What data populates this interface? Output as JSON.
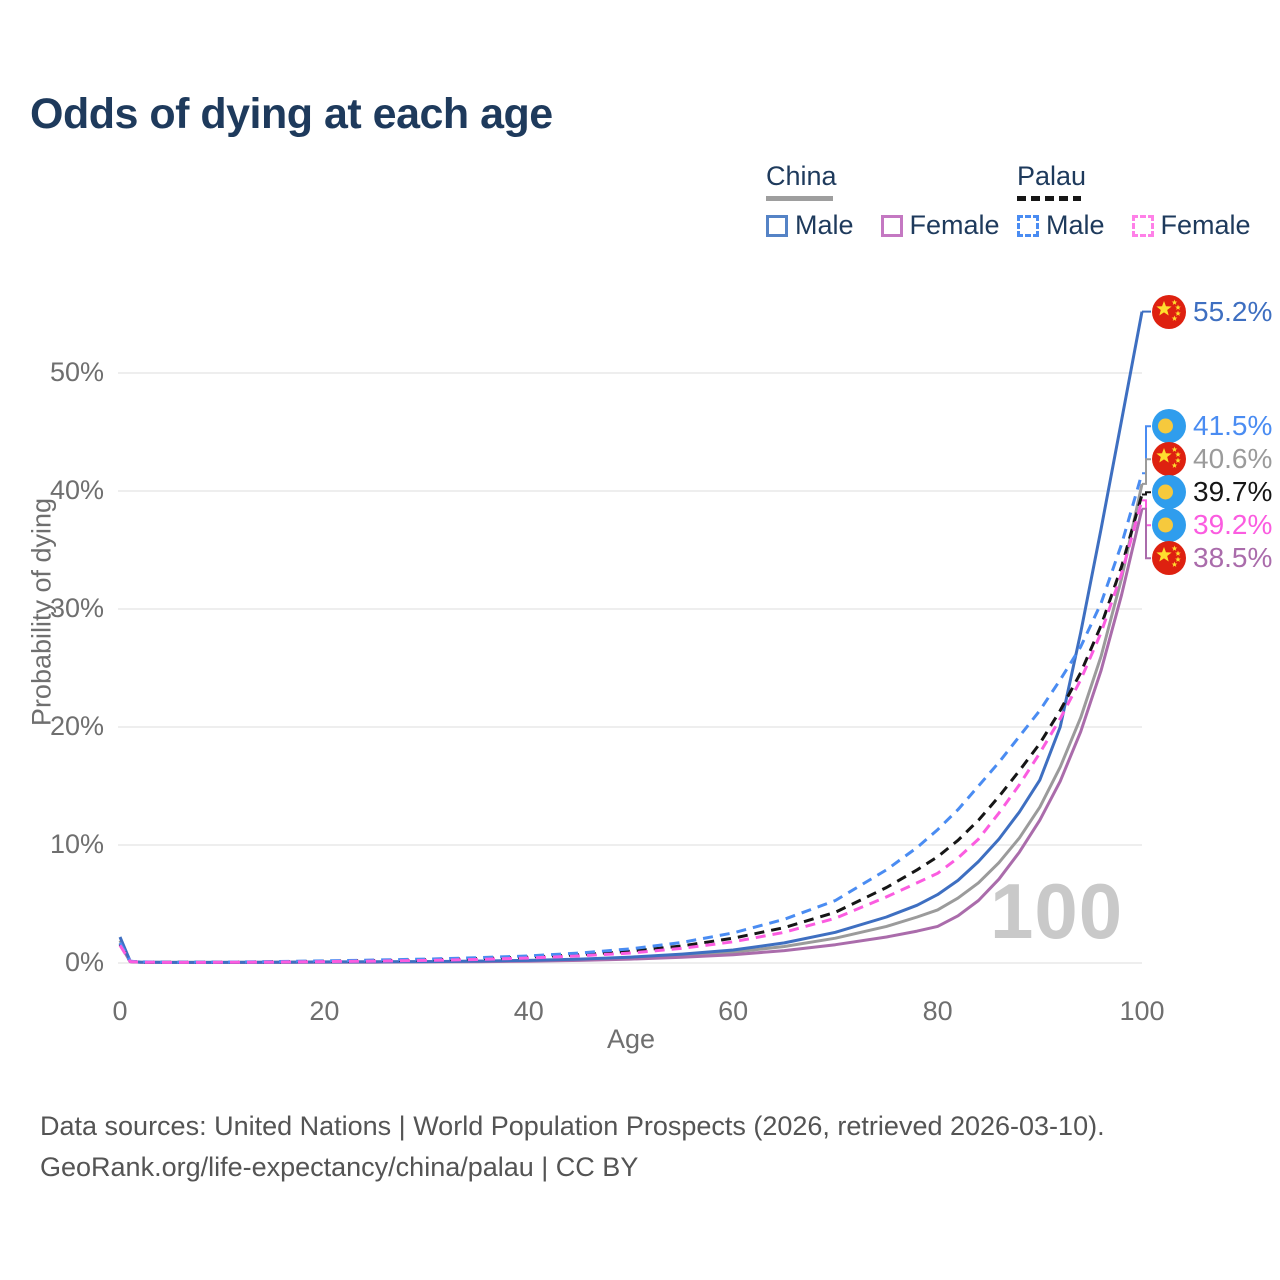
{
  "title": "Odds of dying at each age",
  "legend": {
    "groups": [
      {
        "name": "China",
        "line_style": "solid",
        "underline_color": "#9e9e9e",
        "items": [
          {
            "label": "Male",
            "color": "#3e6fc1"
          },
          {
            "label": "Female",
            "color": "#aa6cab"
          }
        ]
      },
      {
        "name": "Palau",
        "line_style": "dashed",
        "underline_color": "#161616",
        "items": [
          {
            "label": "Male",
            "color": "#4a8cf2"
          },
          {
            "label": "Female",
            "color": "#fb5ce0"
          }
        ]
      }
    ]
  },
  "chart_data": {
    "type": "line",
    "title": "Odds of dying at each age",
    "xlabel": "Age",
    "ylabel": "Probability of dying",
    "xlim": [
      0,
      100
    ],
    "ylim": [
      0,
      57
    ],
    "xticks": [
      0,
      20,
      40,
      60,
      80,
      100
    ],
    "yticks": [
      0,
      10,
      20,
      30,
      40,
      50
    ],
    "ytick_suffix": "%",
    "grid": "horizontal-only",
    "legend_position": "top-right",
    "watermark": "100",
    "series": [
      {
        "id": "china-total",
        "name": "China (both sexes)",
        "country": "China",
        "sex": "Total",
        "color": "#9b9b9b",
        "dash": false,
        "flag": "china",
        "end_label": "40.6%",
        "points": [
          [
            0,
            1.9
          ],
          [
            1,
            0.13
          ],
          [
            2,
            0.07
          ],
          [
            5,
            0.05
          ],
          [
            10,
            0.05
          ],
          [
            15,
            0.06
          ],
          [
            20,
            0.08
          ],
          [
            25,
            0.09
          ],
          [
            30,
            0.11
          ],
          [
            35,
            0.14
          ],
          [
            40,
            0.19
          ],
          [
            45,
            0.28
          ],
          [
            50,
            0.42
          ],
          [
            55,
            0.62
          ],
          [
            60,
            0.92
          ],
          [
            65,
            1.4
          ],
          [
            70,
            2.1
          ],
          [
            75,
            3.1
          ],
          [
            78,
            3.9
          ],
          [
            80,
            4.5
          ],
          [
            82,
            5.5
          ],
          [
            84,
            6.8
          ],
          [
            86,
            8.5
          ],
          [
            88,
            10.6
          ],
          [
            90,
            13.2
          ],
          [
            92,
            16.6
          ],
          [
            94,
            20.8
          ],
          [
            96,
            26.0
          ],
          [
            98,
            32.6
          ],
          [
            100,
            40.6
          ]
        ]
      },
      {
        "id": "china-female",
        "name": "China Female",
        "country": "China",
        "sex": "Female",
        "color": "#aa6cab",
        "dash": false,
        "flag": "china",
        "end_label": "38.5%",
        "points": [
          [
            0,
            1.6
          ],
          [
            1,
            0.11
          ],
          [
            2,
            0.06
          ],
          [
            5,
            0.04
          ],
          [
            10,
            0.04
          ],
          [
            15,
            0.05
          ],
          [
            20,
            0.06
          ],
          [
            25,
            0.07
          ],
          [
            30,
            0.09
          ],
          [
            35,
            0.11
          ],
          [
            40,
            0.15
          ],
          [
            45,
            0.22
          ],
          [
            50,
            0.33
          ],
          [
            55,
            0.48
          ],
          [
            60,
            0.7
          ],
          [
            65,
            1.05
          ],
          [
            70,
            1.55
          ],
          [
            75,
            2.2
          ],
          [
            78,
            2.7
          ],
          [
            80,
            3.1
          ],
          [
            82,
            4.0
          ],
          [
            84,
            5.3
          ],
          [
            86,
            7.1
          ],
          [
            88,
            9.4
          ],
          [
            90,
            12.1
          ],
          [
            92,
            15.4
          ],
          [
            94,
            19.6
          ],
          [
            96,
            24.8
          ],
          [
            98,
            31.2
          ],
          [
            100,
            38.5
          ]
        ]
      },
      {
        "id": "china-male",
        "name": "China Male",
        "country": "China",
        "sex": "Male",
        "color": "#3e6fc1",
        "dash": false,
        "flag": "china",
        "end_label": "55.2%",
        "points": [
          [
            0,
            2.2
          ],
          [
            1,
            0.15
          ],
          [
            2,
            0.08
          ],
          [
            5,
            0.05
          ],
          [
            10,
            0.05
          ],
          [
            15,
            0.07
          ],
          [
            20,
            0.09
          ],
          [
            25,
            0.1
          ],
          [
            30,
            0.12
          ],
          [
            35,
            0.16
          ],
          [
            40,
            0.22
          ],
          [
            45,
            0.33
          ],
          [
            50,
            0.5
          ],
          [
            55,
            0.75
          ],
          [
            60,
            1.1
          ],
          [
            65,
            1.7
          ],
          [
            70,
            2.6
          ],
          [
            75,
            3.9
          ],
          [
            78,
            4.9
          ],
          [
            80,
            5.8
          ],
          [
            82,
            7.0
          ],
          [
            84,
            8.6
          ],
          [
            86,
            10.5
          ],
          [
            88,
            12.8
          ],
          [
            90,
            15.5
          ],
          [
            92,
            20.0
          ],
          [
            94,
            28.0
          ],
          [
            96,
            36.8
          ],
          [
            98,
            46.0
          ],
          [
            100,
            55.2
          ]
        ]
      },
      {
        "id": "palau-total",
        "name": "Palau (both sexes)",
        "country": "Palau",
        "sex": "Total",
        "color": "#161616",
        "dash": true,
        "flag": "palau",
        "end_label": "39.7%",
        "points": [
          [
            0,
            1.6
          ],
          [
            1,
            0.13
          ],
          [
            2,
            0.08
          ],
          [
            5,
            0.06
          ],
          [
            10,
            0.07
          ],
          [
            15,
            0.1
          ],
          [
            20,
            0.15
          ],
          [
            25,
            0.2
          ],
          [
            30,
            0.27
          ],
          [
            35,
            0.37
          ],
          [
            40,
            0.5
          ],
          [
            45,
            0.7
          ],
          [
            50,
            1.0
          ],
          [
            55,
            1.45
          ],
          [
            60,
            2.1
          ],
          [
            65,
            3.0
          ],
          [
            70,
            4.3
          ],
          [
            75,
            6.4
          ],
          [
            78,
            7.9
          ],
          [
            80,
            9.0
          ],
          [
            82,
            10.4
          ],
          [
            84,
            12.1
          ],
          [
            86,
            14.1
          ],
          [
            88,
            16.3
          ],
          [
            90,
            18.6
          ],
          [
            92,
            21.4
          ],
          [
            94,
            24.6
          ],
          [
            96,
            28.6
          ],
          [
            98,
            33.6
          ],
          [
            100,
            39.7
          ]
        ]
      },
      {
        "id": "palau-male",
        "name": "Palau Male",
        "country": "Palau",
        "sex": "Male",
        "color": "#4a8cf2",
        "dash": true,
        "flag": "palau",
        "end_label": "41.5%",
        "points": [
          [
            0,
            1.7
          ],
          [
            1,
            0.14
          ],
          [
            2,
            0.09
          ],
          [
            5,
            0.07
          ],
          [
            10,
            0.08
          ],
          [
            15,
            0.12
          ],
          [
            20,
            0.18
          ],
          [
            25,
            0.25
          ],
          [
            30,
            0.33
          ],
          [
            35,
            0.45
          ],
          [
            40,
            0.6
          ],
          [
            45,
            0.85
          ],
          [
            50,
            1.2
          ],
          [
            55,
            1.75
          ],
          [
            60,
            2.55
          ],
          [
            65,
            3.7
          ],
          [
            70,
            5.3
          ],
          [
            75,
            7.9
          ],
          [
            78,
            9.8
          ],
          [
            80,
            11.3
          ],
          [
            82,
            13.0
          ],
          [
            84,
            15.0
          ],
          [
            86,
            17.0
          ],
          [
            88,
            19.2
          ],
          [
            90,
            21.4
          ],
          [
            92,
            24.0
          ],
          [
            94,
            26.8
          ],
          [
            96,
            30.5
          ],
          [
            98,
            35.5
          ],
          [
            100,
            41.5
          ]
        ]
      },
      {
        "id": "palau-female",
        "name": "Palau Female",
        "country": "Palau",
        "sex": "Female",
        "color": "#fb5ce0",
        "dash": true,
        "flag": "palau",
        "end_label": "39.2%",
        "points": [
          [
            0,
            1.5
          ],
          [
            1,
            0.12
          ],
          [
            2,
            0.07
          ],
          [
            5,
            0.05
          ],
          [
            10,
            0.06
          ],
          [
            15,
            0.08
          ],
          [
            20,
            0.12
          ],
          [
            25,
            0.16
          ],
          [
            30,
            0.22
          ],
          [
            35,
            0.3
          ],
          [
            40,
            0.42
          ],
          [
            45,
            0.6
          ],
          [
            50,
            0.85
          ],
          [
            55,
            1.25
          ],
          [
            60,
            1.8
          ],
          [
            65,
            2.6
          ],
          [
            70,
            3.8
          ],
          [
            75,
            5.6
          ],
          [
            78,
            6.8
          ],
          [
            80,
            7.6
          ],
          [
            82,
            8.9
          ],
          [
            84,
            10.5
          ],
          [
            86,
            12.7
          ],
          [
            88,
            15.1
          ],
          [
            90,
            17.8
          ],
          [
            92,
            20.7
          ],
          [
            94,
            24.0
          ],
          [
            96,
            28.0
          ],
          [
            98,
            33.0
          ],
          [
            100,
            39.2
          ]
        ]
      }
    ],
    "flag_colors": {
      "china": {
        "field": "#de2110",
        "star": "#fede2e"
      },
      "palau": {
        "field": "#2f9ded",
        "moon": "#f6c93d"
      }
    }
  },
  "footer": {
    "line1": "Data sources: United Nations | World Population Prospects (2026, retrieved 2026-03-10).",
    "line2": "GeoRank.org/life-expectancy/china/palau | CC BY"
  }
}
